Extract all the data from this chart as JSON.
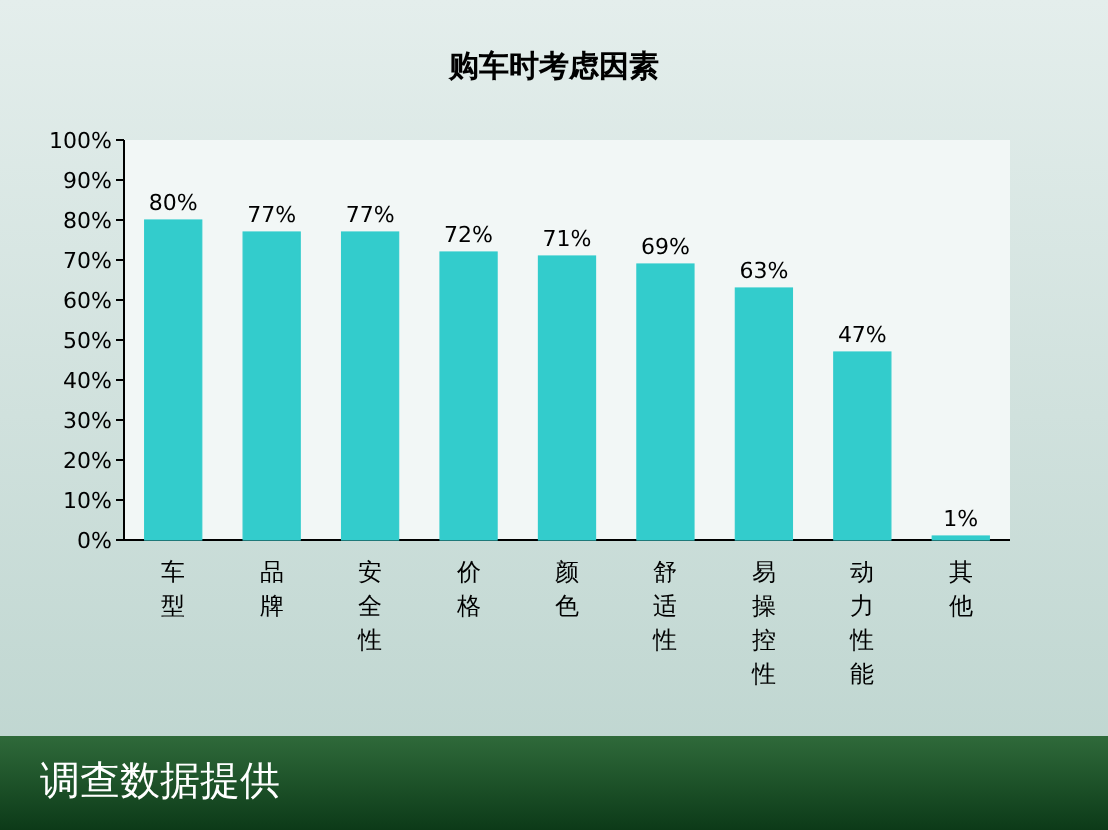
{
  "chart_data": {
    "type": "bar",
    "title": "购车时考虑因素",
    "categories": [
      "车型",
      "品牌",
      "安全性",
      "价格",
      "颜色",
      "舒适性",
      "易操控性",
      "动力性能",
      "其他"
    ],
    "values": [
      80,
      77,
      77,
      72,
      71,
      69,
      63,
      47,
      1
    ],
    "value_labels": [
      "80%",
      "77%",
      "77%",
      "72%",
      "71%",
      "69%",
      "63%",
      "47%",
      "1%"
    ],
    "color": "#33cccc",
    "ylim": [
      0,
      100
    ],
    "yticks": [
      {
        "value": 0,
        "label": "0%"
      },
      {
        "value": 10,
        "label": "10%"
      },
      {
        "value": 20,
        "label": "20%"
      },
      {
        "value": 30,
        "label": "30%"
      },
      {
        "value": 40,
        "label": "40%"
      },
      {
        "value": 50,
        "label": "50%"
      },
      {
        "value": 60,
        "label": "60%"
      },
      {
        "value": 70,
        "label": "70%"
      },
      {
        "value": 80,
        "label": "80%"
      },
      {
        "value": 90,
        "label": "90%"
      },
      {
        "value": 100,
        "label": "100%"
      }
    ],
    "annotations": [
      "调查数据提供"
    ]
  }
}
